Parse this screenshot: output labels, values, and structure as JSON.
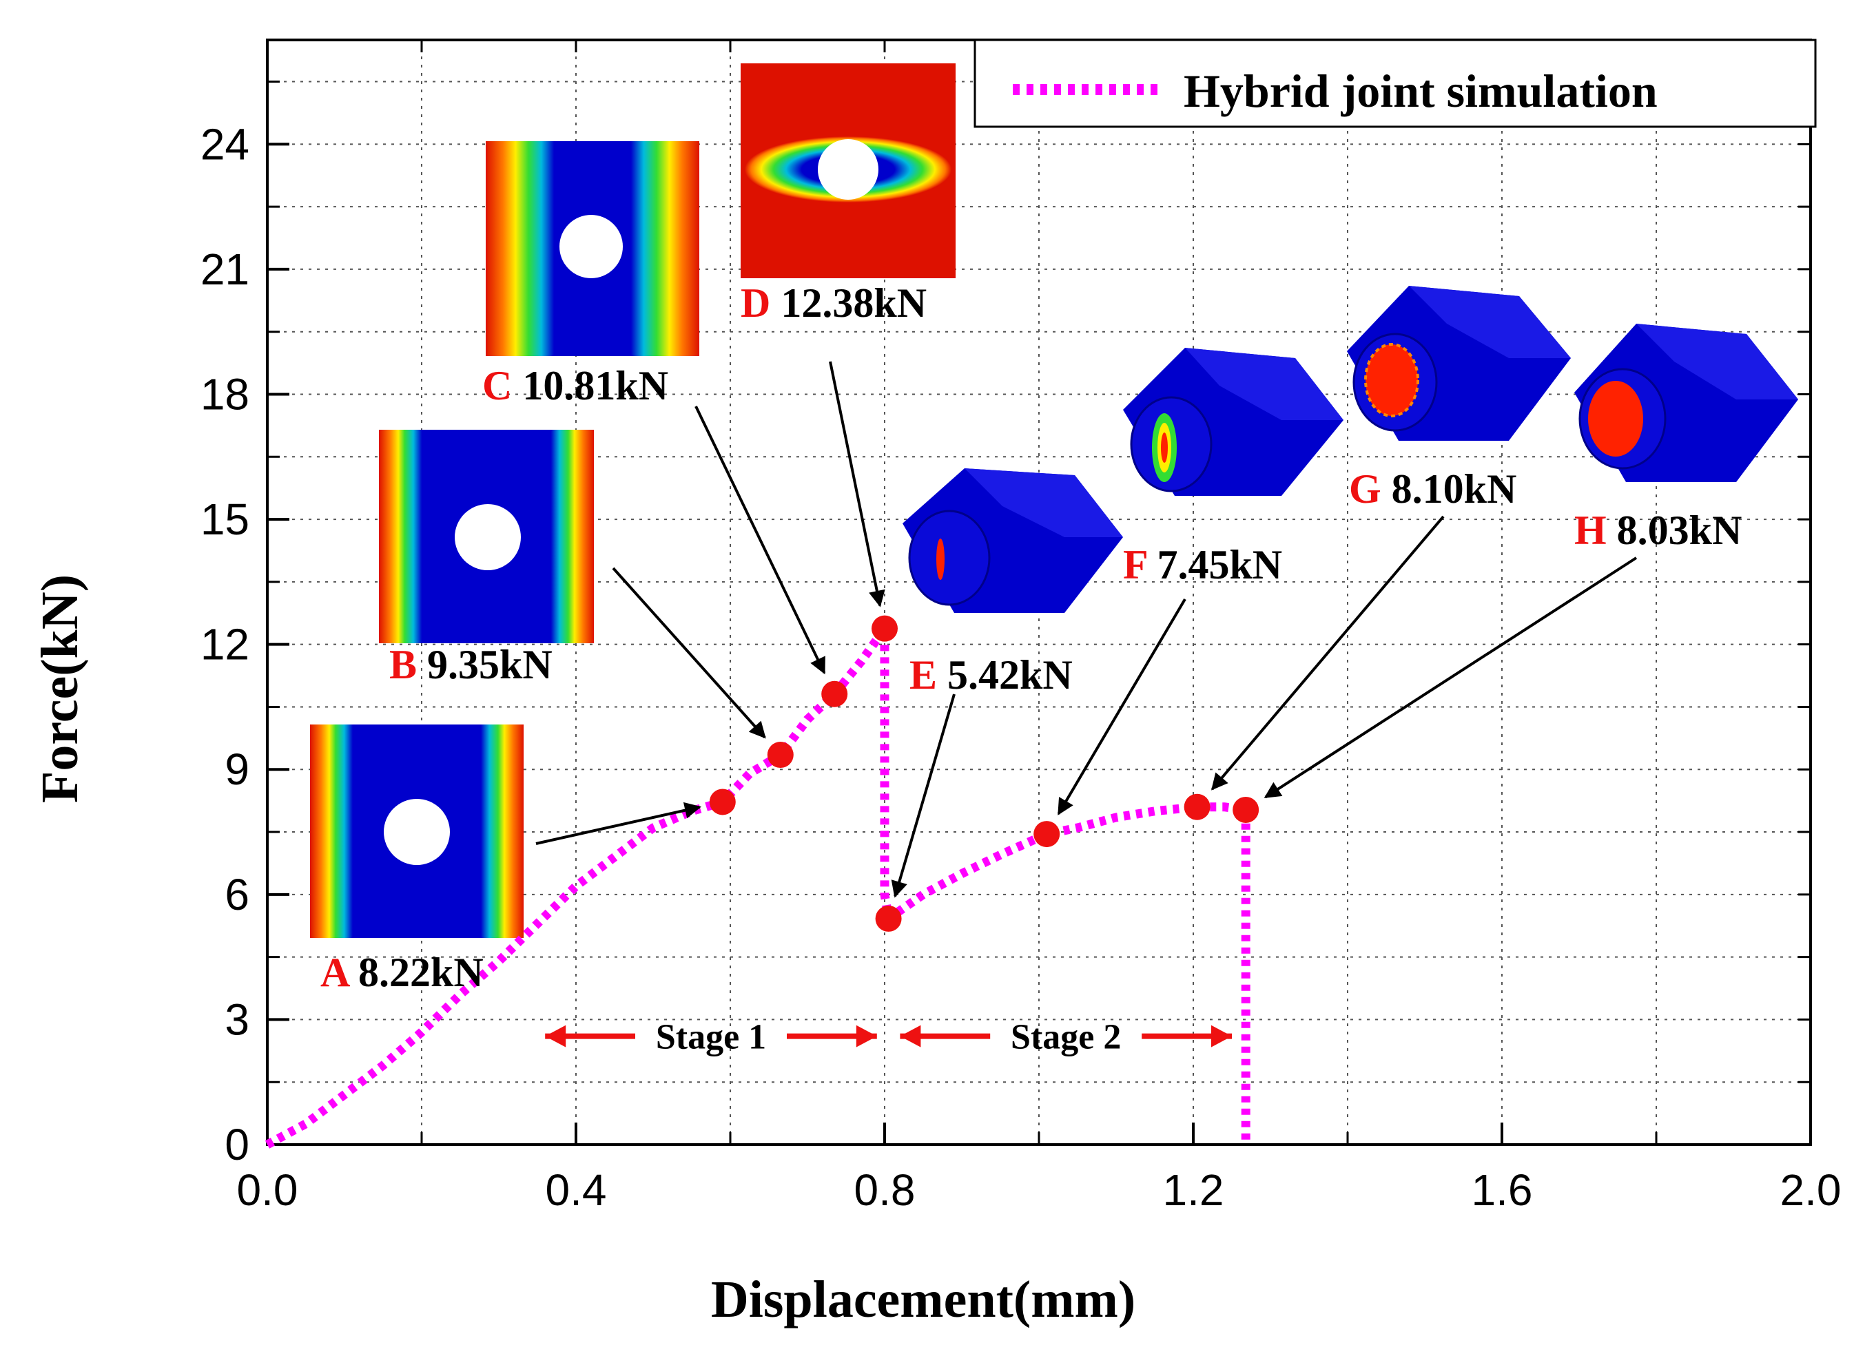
{
  "chart_data": {
    "type": "line",
    "title": "",
    "xlabel": "Displacement(mm)",
    "ylabel": "Force(kN)",
    "xlim": [
      0.0,
      2.0
    ],
    "ylim": [
      0,
      26.5
    ],
    "x_ticks": [
      "0.0",
      "0.4",
      "0.8",
      "1.2",
      "1.6",
      "2.0"
    ],
    "x_tick_values": [
      0.0,
      0.4,
      0.8,
      1.2,
      1.6,
      2.0
    ],
    "y_ticks": [
      "0",
      "3",
      "6",
      "9",
      "12",
      "15",
      "18",
      "21",
      "24"
    ],
    "y_tick_values": [
      0,
      3,
      6,
      9,
      12,
      15,
      18,
      21,
      24
    ],
    "grid": true,
    "legend_position": "top-right",
    "series": [
      {
        "name": "Hybrid joint simulation",
        "color": "#ff00ff",
        "x": [
          0.0,
          0.05,
          0.1,
          0.15,
          0.2,
          0.25,
          0.3,
          0.35,
          0.4,
          0.45,
          0.5,
          0.55,
          0.59,
          0.625,
          0.665,
          0.7,
          0.735,
          0.77,
          0.8,
          0.8,
          0.8,
          0.805,
          0.85,
          0.9,
          0.95,
          1.01,
          1.05,
          1.1,
          1.15,
          1.205,
          1.24,
          1.268,
          1.268,
          1.268
        ],
        "values": [
          0.0,
          0.5,
          1.2,
          1.9,
          2.7,
          3.6,
          4.4,
          5.3,
          6.2,
          6.9,
          7.6,
          8.0,
          8.22,
          8.9,
          9.35,
          10.2,
          10.81,
          11.6,
          12.38,
          9.0,
          6.0,
          5.42,
          6.0,
          6.5,
          6.95,
          7.45,
          7.6,
          7.85,
          8.0,
          8.1,
          8.1,
          8.03,
          4.0,
          0.0
        ]
      }
    ],
    "markers": [
      {
        "label": "A",
        "value_text": "8.22kN",
        "x": 0.59,
        "y": 8.22
      },
      {
        "label": "B",
        "value_text": "9.35kN",
        "x": 0.665,
        "y": 9.35
      },
      {
        "label": "C",
        "value_text": "10.81kN",
        "x": 0.735,
        "y": 10.81
      },
      {
        "label": "D",
        "value_text": "12.38kN",
        "x": 0.8,
        "y": 12.38
      },
      {
        "label": "E",
        "value_text": "5.42kN",
        "x": 0.805,
        "y": 5.42
      },
      {
        "label": "F",
        "value_text": "7.45kN",
        "x": 1.01,
        "y": 7.45
      },
      {
        "label": "G",
        "value_text": "8.10kN",
        "x": 1.205,
        "y": 8.1
      },
      {
        "label": "H",
        "value_text": "8.03kN",
        "x": 1.268,
        "y": 8.03
      }
    ],
    "annotations": {
      "stage1": "Stage 1",
      "stage2": "Stage 2",
      "stage1_range": [
        0.36,
        0.79
      ],
      "stage2_range": [
        0.82,
        1.25
      ],
      "stage_y": 2.6
    },
    "colors": {
      "line": "#ff00ff",
      "marker": "#ee1111",
      "marker_label": "#ee1111",
      "arrow": "#ee1111",
      "contour_blue": "#0000cc",
      "contour_red": "#dd1100"
    }
  }
}
